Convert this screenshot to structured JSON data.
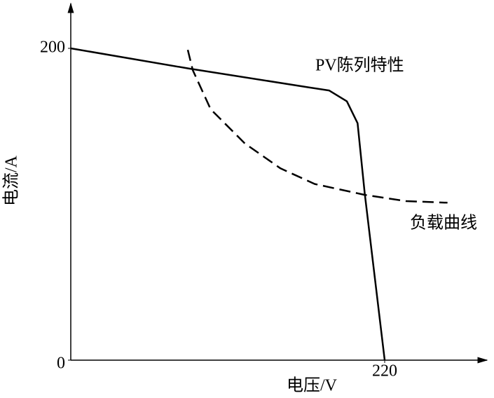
{
  "chart_data": {
    "type": "line",
    "x_label": "电压/V",
    "y_label": "电流/A",
    "xlim": [
      0,
      289
    ],
    "ylim": [
      0,
      229
    ],
    "xticks": [
      220
    ],
    "yticks": [
      0,
      200
    ],
    "grid": false,
    "series": [
      {
        "name": "PV陈列特性",
        "color": "#000000",
        "dash": false,
        "x": [
          0,
          83,
          166.5,
          181,
          193.5,
          201,
          206,
          220
        ],
        "values": [
          200,
          187,
          175,
          173,
          166,
          152,
          107,
          0
        ]
      },
      {
        "name": "负载曲线",
        "color": "#000000",
        "dash": true,
        "x": [
          82,
          85.5,
          98,
          122,
          147,
          171,
          206,
          235,
          264
        ],
        "values": [
          199,
          186,
          161,
          139,
          123,
          113,
          106,
          102,
          101
        ]
      }
    ]
  }
}
